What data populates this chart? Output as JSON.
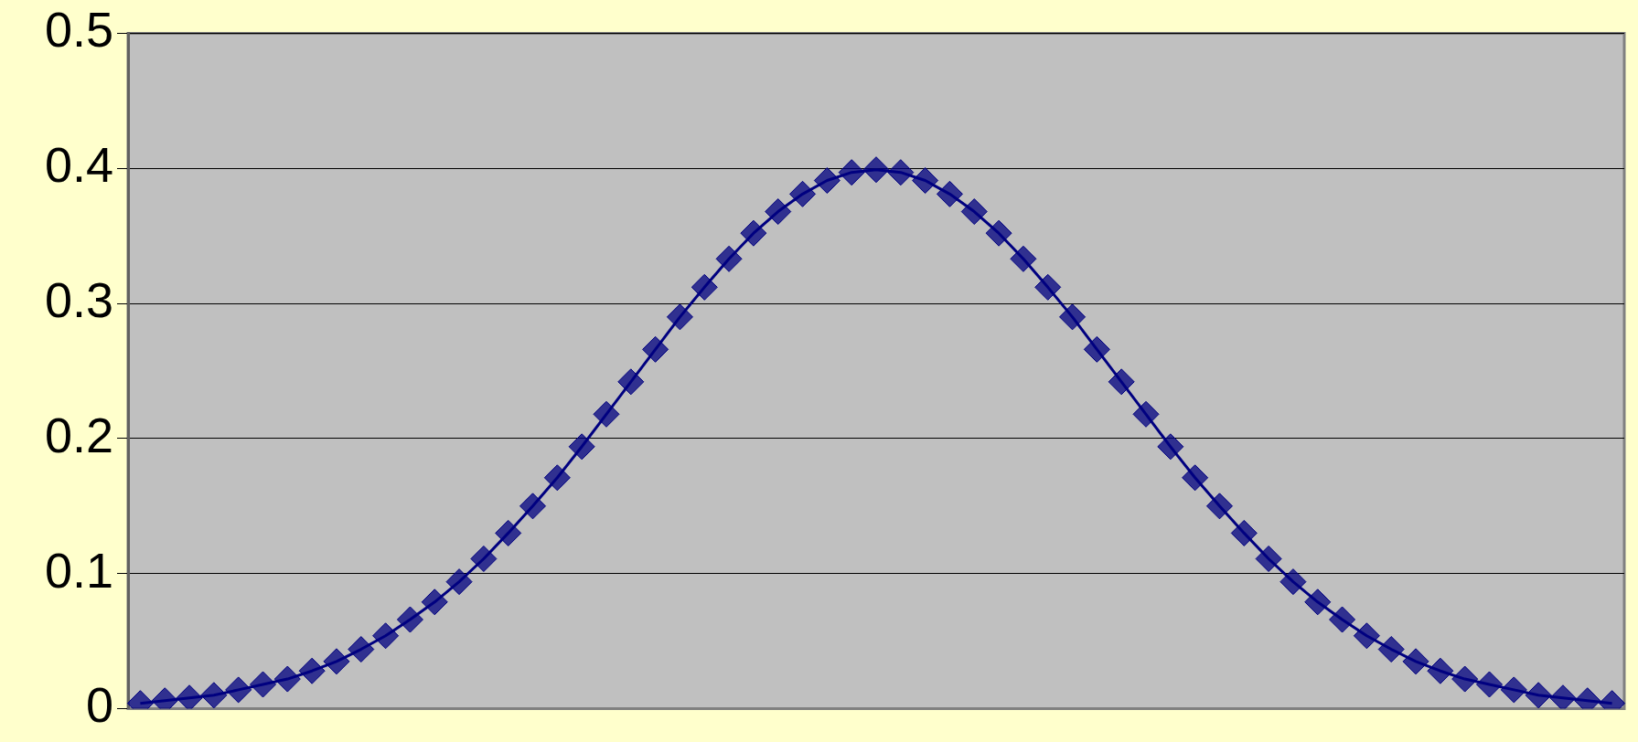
{
  "chart_data": {
    "type": "line",
    "categories": [
      null,
      null,
      null,
      null,
      null,
      null,
      null,
      null,
      null,
      null,
      null,
      null,
      null,
      null,
      null,
      null,
      null,
      null,
      null,
      null,
      null,
      null,
      null,
      null,
      null,
      null,
      null,
      null,
      null,
      null,
      null,
      null,
      null,
      null,
      null,
      null,
      null,
      null,
      null,
      null,
      null,
      null,
      null,
      null,
      null,
      null,
      null,
      null,
      null,
      null,
      null,
      null,
      null,
      null,
      null,
      null,
      null,
      null,
      null,
      null,
      null
    ],
    "series": [
      {
        "color": "#000080",
        "values": [
          0.004,
          0.006,
          0.008,
          0.01,
          0.014,
          0.018,
          0.022,
          0.028,
          0.035,
          0.044,
          0.054,
          0.066,
          0.079,
          0.094,
          0.111,
          0.13,
          0.15,
          0.171,
          0.194,
          0.218,
          0.242,
          0.266,
          0.29,
          0.312,
          0.333,
          0.352,
          0.368,
          0.381,
          0.391,
          0.397,
          0.399,
          0.397,
          0.391,
          0.381,
          0.368,
          0.352,
          0.333,
          0.312,
          0.29,
          0.266,
          0.242,
          0.218,
          0.194,
          0.171,
          0.15,
          0.13,
          0.111,
          0.094,
          0.079,
          0.066,
          0.054,
          0.044,
          0.035,
          0.028,
          0.022,
          0.018,
          0.014,
          0.01,
          0.008,
          0.006,
          0.004
        ]
      }
    ],
    "ylim": [
      0,
      0.5
    ],
    "yticks": [
      0,
      0.1,
      0.2,
      0.3,
      0.4,
      0.5
    ],
    "grid": "y",
    "tick_labels": "y",
    "marker": "diamond",
    "line_style": "solid",
    "legend": false
  }
}
